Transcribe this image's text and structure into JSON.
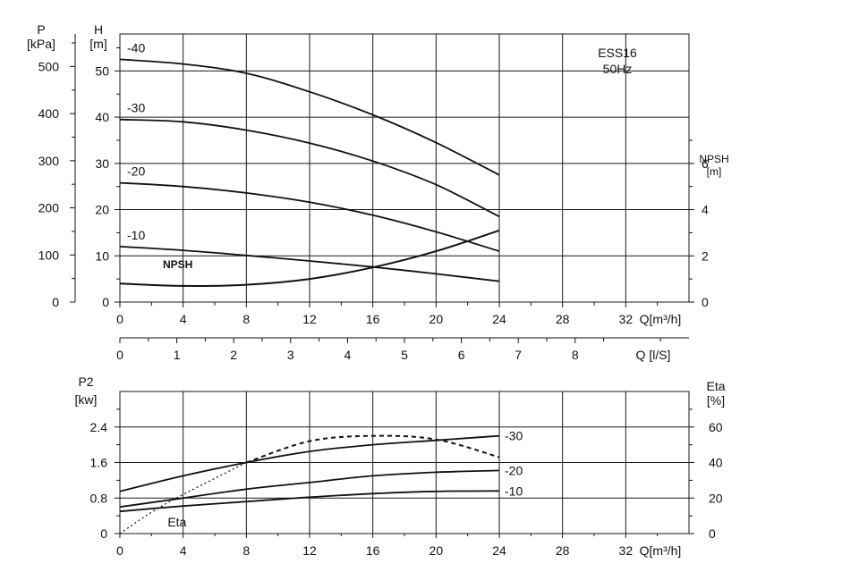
{
  "colors": {
    "ink": "#111111",
    "grid": "#1a1a1a",
    "background": "#ffffff"
  },
  "chart_data": [
    {
      "type": "line",
      "title": "ESS16",
      "subtitle": "50Hz",
      "xlabel": "Q[m³/h]",
      "x_ticks": [
        "0",
        "4",
        "8",
        "12",
        "16",
        "20",
        "24",
        "28",
        "32"
      ],
      "xlim": [
        0,
        36
      ],
      "ylabel_left": "H [m]",
      "ylabel_left_unit": "[m]",
      "ylabel_left_name": "H",
      "y_ticks_left": [
        "0",
        "10",
        "20",
        "30",
        "40",
        "50"
      ],
      "ylim_left": [
        0,
        58
      ],
      "pressure_axis": {
        "name": "P",
        "unit": "[kPa]",
        "ticks": [
          "0",
          "100",
          "200",
          "300",
          "400",
          "500"
        ]
      },
      "second_x_axis": {
        "label": "Q [l/S]",
        "ticks": [
          "0",
          "1",
          "2",
          "3",
          "4",
          "5",
          "6",
          "7",
          "8"
        ]
      },
      "ylabel_right_name": "NPSH",
      "ylabel_right_unit": "[m]",
      "y_ticks_right": [
        "0",
        "2",
        "4",
        "6"
      ],
      "ylim_right": [
        0,
        11.6
      ],
      "grid": true,
      "series": [
        {
          "name": "-40",
          "x": [
            0,
            4,
            8,
            12,
            16,
            20,
            24
          ],
          "y": [
            52.5,
            51.5,
            49.5,
            45.5,
            40.5,
            34.5,
            27.5
          ]
        },
        {
          "name": "-30",
          "x": [
            0,
            4,
            8,
            12,
            16,
            20,
            24
          ],
          "y": [
            39.5,
            39.0,
            37.2,
            34.4,
            30.5,
            25.4,
            18.5
          ]
        },
        {
          "name": "-20",
          "x": [
            0,
            4,
            8,
            12,
            16,
            20,
            24
          ],
          "y": [
            25.8,
            25.0,
            23.6,
            21.6,
            18.8,
            15.2,
            11.0
          ]
        },
        {
          "name": "-10",
          "x": [
            0,
            4,
            8,
            12,
            16,
            20,
            24
          ],
          "y": [
            12.0,
            11.2,
            10.1,
            8.9,
            7.6,
            6.1,
            4.5
          ]
        },
        {
          "name": "NPSH",
          "axis": "right",
          "x": [
            0,
            4,
            8,
            12,
            16,
            20,
            24
          ],
          "y": [
            0.8,
            0.7,
            0.75,
            1.0,
            1.5,
            2.2,
            3.1
          ]
        }
      ]
    },
    {
      "type": "line",
      "xlabel": "Q[m³/h]",
      "x_ticks": [
        "0",
        "4",
        "8",
        "12",
        "16",
        "20",
        "24",
        "28",
        "32"
      ],
      "xlim": [
        0,
        36
      ],
      "ylabel_left_name": "P2",
      "ylabel_left_unit": "[kw]",
      "y_ticks_left": [
        "0",
        "0.8",
        "1.6",
        "2.4"
      ],
      "ylim_left": [
        0,
        3.2
      ],
      "ylabel_right_name": "Eta",
      "ylabel_right_unit": "[%]",
      "y_ticks_right": [
        "0",
        "20",
        "40",
        "60"
      ],
      "ylim_right": [
        0,
        80
      ],
      "grid": true,
      "series": [
        {
          "name": "-30",
          "x": [
            0,
            4,
            8,
            12,
            16,
            20,
            24
          ],
          "y": [
            0.95,
            1.3,
            1.6,
            1.85,
            2.0,
            2.1,
            2.2
          ]
        },
        {
          "name": "-20",
          "x": [
            0,
            4,
            8,
            12,
            16,
            20,
            24
          ],
          "y": [
            0.6,
            0.8,
            1.0,
            1.15,
            1.3,
            1.38,
            1.42
          ]
        },
        {
          "name": "-10",
          "x": [
            0,
            4,
            8,
            12,
            16,
            20,
            24
          ],
          "y": [
            0.5,
            0.62,
            0.72,
            0.82,
            0.9,
            0.95,
            0.96
          ]
        },
        {
          "name": "Eta",
          "axis": "right",
          "x": [
            0,
            2,
            4,
            8,
            12,
            16,
            20,
            24
          ],
          "y": [
            0,
            12,
            22,
            40,
            52,
            55,
            53,
            43
          ]
        }
      ]
    }
  ]
}
